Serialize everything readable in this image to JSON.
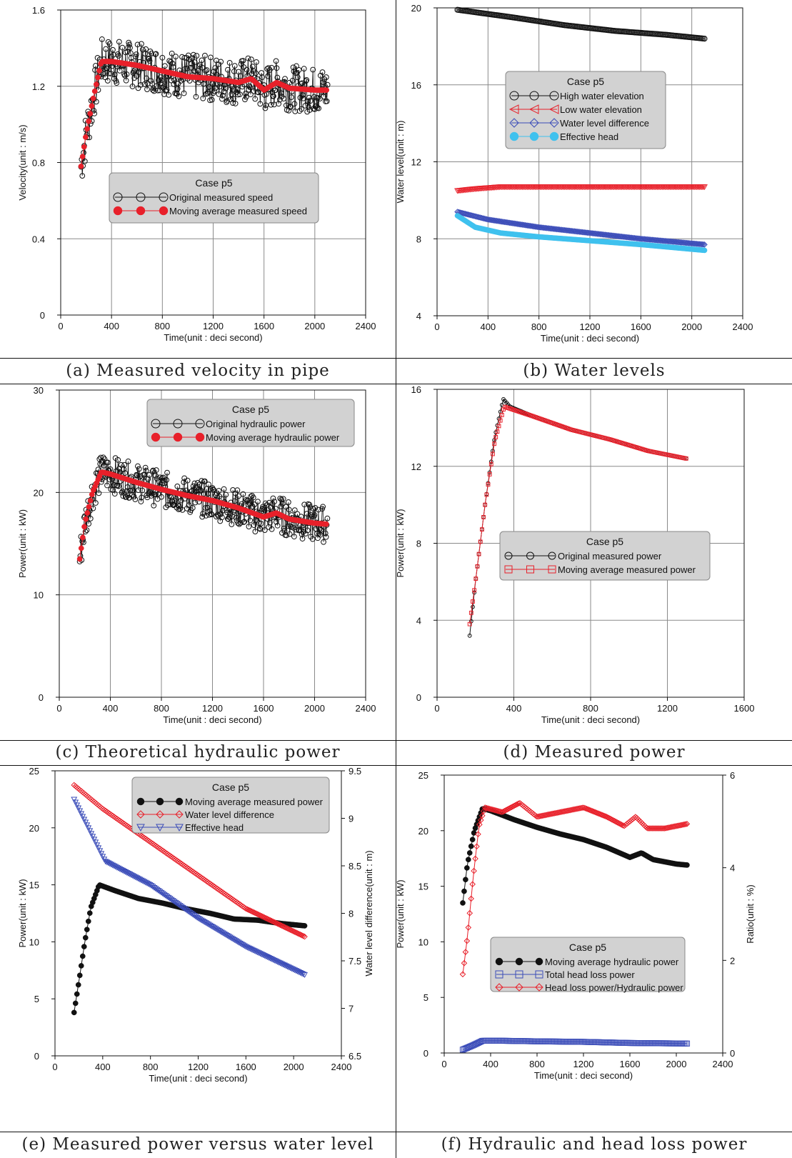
{
  "figure": {
    "panels": [
      {
        "id": "a",
        "caption": "(a) Measured velocity in pipe",
        "chart_data": {
          "type": "line",
          "title": "",
          "xlabel": "Time(unit : deci second)",
          "ylabel": "Velocity(unit : m/s)",
          "xlim": [
            0,
            2400
          ],
          "ylim": [
            0,
            1.6
          ],
          "xticks": [
            0,
            400,
            800,
            1200,
            1600,
            2000,
            2400
          ],
          "yticks": [
            0,
            0.4,
            0.8,
            1.2,
            1.6
          ],
          "ytick_labels": [
            "0",
            "0.4",
            "0.8",
            "1.2",
            "1.6"
          ],
          "grid": true,
          "legend": {
            "title": "Case p5",
            "placement": "center",
            "entries": [
              "Original measured speed",
              "Moving average measured speed"
            ]
          },
          "series": [
            {
              "name": "Original measured speed",
              "style": "noisy-open-circle",
              "color": "#111111",
              "x": [
                160,
                200,
                260,
                320,
                400,
                600,
                800,
                1000,
                1200,
                1400,
                1500,
                1600,
                1700,
                1800,
                2000,
                2100
              ],
              "y": [
                0.78,
                0.95,
                1.15,
                1.33,
                1.33,
                1.31,
                1.28,
                1.25,
                1.24,
                1.22,
                1.24,
                1.18,
                1.22,
                1.19,
                1.18,
                1.18
              ],
              "noise": 0.12
            },
            {
              "name": "Moving average measured speed",
              "style": "filled-circle",
              "color": "#e8202a",
              "x": [
                160,
                200,
                260,
                320,
                400,
                600,
                800,
                1000,
                1200,
                1400,
                1500,
                1600,
                1700,
                1800,
                2000,
                2100
              ],
              "y": [
                0.78,
                0.95,
                1.15,
                1.33,
                1.33,
                1.31,
                1.28,
                1.25,
                1.24,
                1.22,
                1.24,
                1.18,
                1.22,
                1.19,
                1.18,
                1.18
              ]
            }
          ]
        }
      },
      {
        "id": "b",
        "caption": "(b) Water levels",
        "chart_data": {
          "type": "line",
          "title": "",
          "xlabel": "Time(unit : deci second)",
          "ylabel": "Water level(unit : m)",
          "xlim": [
            0,
            2400
          ],
          "ylim": [
            4,
            20
          ],
          "xticks": [
            0,
            400,
            800,
            1200,
            1600,
            2000,
            2400
          ],
          "yticks": [
            4,
            8,
            12,
            16,
            20
          ],
          "ytick_labels": [
            "4",
            "8",
            "12",
            "16",
            "20"
          ],
          "grid": true,
          "legend": {
            "title": "Case p5",
            "placement": "top-center",
            "entries": [
              "High water elevation",
              "Low water elevation",
              "Water level difference",
              "Effective head"
            ]
          },
          "series": [
            {
              "name": "High water elevation",
              "style": "open-circle",
              "color": "#111111",
              "x": [
                160,
                600,
                1000,
                1400,
                1800,
                2100
              ],
              "y": [
                19.9,
                19.5,
                19.1,
                18.8,
                18.6,
                18.4
              ]
            },
            {
              "name": "Low water elevation",
              "style": "open-triangle",
              "color": "#e8202a",
              "x": [
                160,
                300,
                500,
                800,
                1200,
                1600,
                2100
              ],
              "y": [
                10.5,
                10.6,
                10.7,
                10.7,
                10.7,
                10.7,
                10.7
              ]
            },
            {
              "name": "Water level difference",
              "style": "open-diamond",
              "color": "#3b4cb8",
              "x": [
                160,
                400,
                800,
                1200,
                1600,
                2100
              ],
              "y": [
                9.4,
                9.0,
                8.6,
                8.3,
                8.0,
                7.7
              ]
            },
            {
              "name": "Effective head",
              "style": "filled-circle",
              "color": "#3fc1ee",
              "x": [
                160,
                300,
                500,
                800,
                1200,
                1600,
                2100
              ],
              "y": [
                9.2,
                8.6,
                8.3,
                8.1,
                7.9,
                7.7,
                7.4
              ]
            }
          ]
        }
      },
      {
        "id": "c",
        "caption": "(c) Theoretical hydraulic power",
        "chart_data": {
          "type": "line",
          "title": "",
          "xlabel": "Time(unit : deci second)",
          "ylabel": "Power(unit : kW)",
          "xlim": [
            0,
            2400
          ],
          "ylim": [
            0,
            30
          ],
          "xticks": [
            0,
            400,
            800,
            1200,
            1600,
            2000,
            2400
          ],
          "yticks": [
            0,
            10,
            20,
            30
          ],
          "ytick_labels": [
            "0",
            "10",
            "20",
            "30"
          ],
          "grid": true,
          "legend": {
            "title": "Case p5",
            "placement": "top-right",
            "entries": [
              "Original hydraulic power",
              "Moving average hydraulic power"
            ]
          },
          "series": [
            {
              "name": "Original hydraulic power",
              "style": "noisy-open-circle",
              "color": "#111111",
              "x": [
                160,
                200,
                260,
                330,
                400,
                600,
                800,
                1000,
                1200,
                1400,
                1600,
                1700,
                1800,
                2000,
                2100
              ],
              "y": [
                13.5,
                17,
                20,
                22,
                21.8,
                21,
                20.3,
                19.7,
                19.2,
                18.5,
                17.6,
                18,
                17.4,
                17,
                16.9
              ],
              "noise": 1.8
            },
            {
              "name": "Moving average hydraulic power",
              "style": "filled-circle",
              "color": "#e8202a",
              "x": [
                160,
                200,
                260,
                330,
                400,
                600,
                800,
                1000,
                1200,
                1400,
                1600,
                1700,
                1800,
                2000,
                2100
              ],
              "y": [
                13.5,
                17,
                20,
                22,
                21.8,
                21,
                20.3,
                19.7,
                19.2,
                18.5,
                17.6,
                18,
                17.4,
                17,
                16.9
              ]
            }
          ]
        }
      },
      {
        "id": "d",
        "caption": "(d) Measured power",
        "chart_data": {
          "type": "line",
          "title": "",
          "xlabel": "Time(unit : deci second)",
          "ylabel": "Power(unit : kW)",
          "xlim": [
            0,
            1600
          ],
          "ylim": [
            0,
            16
          ],
          "xticks": [
            0,
            400,
            800,
            1200,
            1600
          ],
          "yticks": [
            0,
            4,
            8,
            12,
            16
          ],
          "ytick_labels": [
            "0",
            "4",
            "8",
            "12",
            "16"
          ],
          "grid": true,
          "legend": {
            "title": "Case p5",
            "placement": "center-right",
            "entries": [
              "Original measured power",
              "Moving average measured power"
            ]
          },
          "series": [
            {
              "name": "Original measured power",
              "style": "open-circle",
              "color": "#111111",
              "x": [
                170,
                200,
                250,
                300,
                345,
                380,
                500,
                700,
                900,
                1100,
                1300
              ],
              "y": [
                3.2,
                6,
                10,
                13.5,
                15.5,
                15.1,
                14.6,
                13.9,
                13.4,
                12.8,
                12.4
              ]
            },
            {
              "name": "Moving average measured power",
              "style": "open-square",
              "color": "#e8202a",
              "x": [
                170,
                200,
                250,
                300,
                350,
                380,
                500,
                700,
                900,
                1100,
                1300
              ],
              "y": [
                3.8,
                6,
                10,
                13.3,
                15.1,
                15.0,
                14.6,
                13.9,
                13.4,
                12.8,
                12.4
              ]
            }
          ]
        }
      },
      {
        "id": "e",
        "caption": "(e) Measured power versus water level",
        "chart_data": {
          "type": "line",
          "title": "",
          "xlabel": "Time(unit : deci second)",
          "ylabel": "Power(unit : kW)",
          "y2label": "Water level difference(unit : m)",
          "xlim": [
            0,
            2400
          ],
          "ylim": [
            0,
            25
          ],
          "y2lim": [
            6.5,
            9.5
          ],
          "xticks": [
            0,
            400,
            800,
            1200,
            1600,
            2000,
            2400
          ],
          "yticks": [
            0,
            5,
            10,
            15,
            20,
            25
          ],
          "ytick_labels": [
            "0",
            "5",
            "10",
            "15",
            "20",
            "25"
          ],
          "y2ticks": [
            6.5,
            7,
            7.5,
            8,
            8.5,
            9,
            9.5
          ],
          "y2tick_labels": [
            "6.5",
            "7",
            "7.5",
            "8",
            "8.5",
            "9",
            "9.5"
          ],
          "grid": false,
          "legend": {
            "title": "Case p5",
            "placement": "top-right",
            "entries": [
              "Moving average measured power",
              "Water level difference",
              "Effective head"
            ]
          },
          "series": [
            {
              "name": "Moving average measured power",
              "axis": "left",
              "style": "filled-circle",
              "color": "#111111",
              "x": [
                160,
                200,
                250,
                300,
                370,
                500,
                700,
                900,
                1100,
                1300,
                1500,
                1700,
                1900,
                2100
              ],
              "y": [
                3.8,
                6.5,
                10,
                13,
                15,
                14.5,
                13.8,
                13.4,
                12.9,
                12.5,
                12.0,
                11.9,
                11.6,
                11.4
              ]
            },
            {
              "name": "Water level difference",
              "axis": "right",
              "style": "open-diamond",
              "color": "#e8202a",
              "x": [
                160,
                400,
                800,
                1200,
                1600,
                2100
              ],
              "y": [
                9.35,
                9.1,
                8.75,
                8.4,
                8.05,
                7.75
              ]
            },
            {
              "name": "Effective head",
              "axis": "right",
              "style": "open-triangle",
              "color": "#3b4cb8",
              "x": [
                160,
                300,
                420,
                800,
                1200,
                1600,
                2100
              ],
              "y": [
                9.2,
                8.85,
                8.55,
                8.3,
                7.95,
                7.65,
                7.35
              ]
            }
          ]
        }
      },
      {
        "id": "f",
        "caption": "(f) Hydraulic and head loss power",
        "chart_data": {
          "type": "line",
          "title": "",
          "xlabel": "Time(unit : deci second)",
          "ylabel": "Power(unit : kW)",
          "y2label": "Ratio(unit : %)",
          "xlim": [
            0,
            2400
          ],
          "ylim": [
            0,
            25
          ],
          "y2lim": [
            0,
            6
          ],
          "xticks": [
            0,
            400,
            800,
            1200,
            1600,
            2000,
            2400
          ],
          "yticks": [
            0,
            5,
            10,
            15,
            20,
            25
          ],
          "ytick_labels": [
            "0",
            "5",
            "10",
            "15",
            "20",
            "25"
          ],
          "y2ticks": [
            0,
            2,
            4,
            6
          ],
          "y2tick_labels": [
            "0",
            "2",
            "4",
            "6"
          ],
          "grid": false,
          "legend": {
            "title": "Case p5",
            "placement": "center-right",
            "entries": [
              "Moving average hydraulic power",
              "Total head loss power",
              "Head loss power/Hydraulic power"
            ]
          },
          "series": [
            {
              "name": "Moving average hydraulic power",
              "axis": "left",
              "style": "filled-circle",
              "color": "#111111",
              "x": [
                160,
                200,
                260,
                330,
                400,
                600,
                800,
                1000,
                1200,
                1400,
                1600,
                1700,
                1800,
                2000,
                2100
              ],
              "y": [
                13.5,
                17,
                20,
                22,
                21.8,
                21,
                20.3,
                19.7,
                19.2,
                18.5,
                17.6,
                18,
                17.4,
                17,
                16.9
              ]
            },
            {
              "name": "Total head loss power",
              "axis": "left",
              "style": "open-square",
              "color": "#3b4cb8",
              "x": [
                160,
                250,
                330,
                500,
                800,
                1200,
                1600,
                2100
              ],
              "y": [
                0.3,
                0.7,
                1.1,
                1.1,
                1.05,
                1.0,
                0.9,
                0.85
              ]
            },
            {
              "name": "Head loss power/Hydraulic power",
              "axis": "right",
              "style": "open-diamond",
              "color": "#e8202a",
              "x": [
                160,
                200,
                250,
                300,
                350,
                500,
                650,
                800,
                1000,
                1200,
                1400,
                1550,
                1650,
                1750,
                1900,
                2100
              ],
              "y": [
                1.7,
                2.5,
                3.8,
                4.9,
                5.3,
                5.2,
                5.4,
                5.1,
                5.2,
                5.3,
                5.1,
                4.9,
                5.1,
                4.85,
                4.85,
                4.95
              ]
            }
          ]
        }
      }
    ]
  }
}
